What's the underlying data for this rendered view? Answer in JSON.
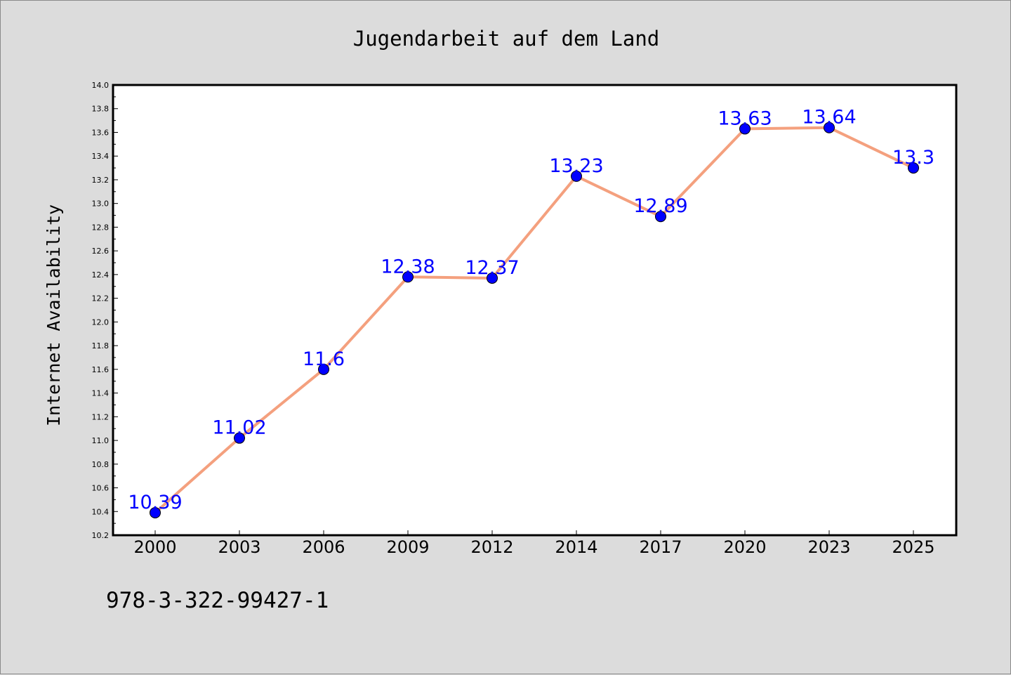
{
  "chart_data": {
    "type": "line",
    "title": "Jugendarbeit auf dem Land",
    "xlabel": "",
    "ylabel": "Internet Availability",
    "categories": [
      "2000",
      "2003",
      "2006",
      "2009",
      "2012",
      "2014",
      "2017",
      "2020",
      "2023",
      "2025"
    ],
    "series": [
      {
        "values": [
          10.39,
          11.02,
          11.6,
          12.38,
          12.37,
          13.23,
          12.89,
          13.63,
          13.64,
          13.3
        ],
        "data_labels": [
          "10.39",
          "11.02",
          "11.6",
          "12.38",
          "12.37",
          "13.23",
          "12.89",
          "13.63",
          "13.64",
          "13.3"
        ],
        "line_color": "#f4a07e",
        "marker_color": "#0000ff",
        "label_color": "#0000ff"
      }
    ],
    "ylim": [
      10.2,
      14.0
    ],
    "yticks": [
      "10.2",
      "10.4",
      "10.6",
      "10.8",
      "11.0",
      "11.2",
      "11.4",
      "11.6",
      "11.8",
      "12.0",
      "12.2",
      "12.4",
      "12.6",
      "12.8",
      "13.0",
      "13.2",
      "13.4",
      "13.6",
      "13.8",
      "14.0"
    ],
    "grid": false,
    "legend": "none",
    "background_color": "#dcdcdc",
    "plot_background_color": "#ffffff"
  },
  "footer": {
    "isbn": "978-3-322-99427-1"
  }
}
